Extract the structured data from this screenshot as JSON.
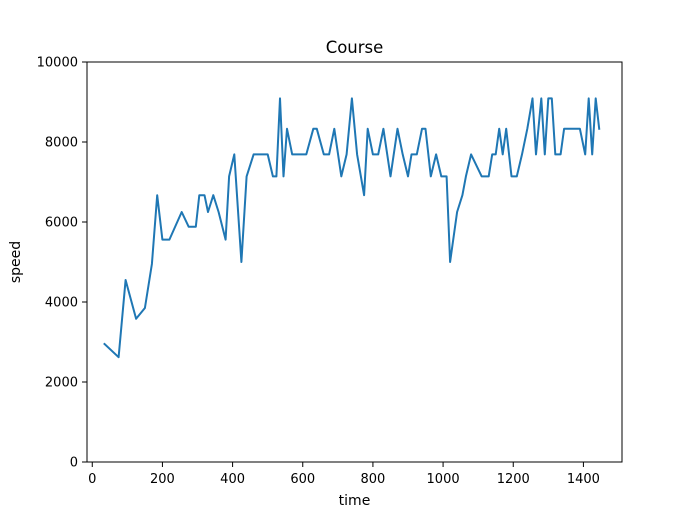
{
  "chart_data": {
    "type": "line",
    "title": "Course",
    "xlabel": "time",
    "ylabel": "speed",
    "xlim": [
      -15,
      1510
    ],
    "ylim": [
      0,
      10000
    ],
    "xticks": [
      0,
      200,
      400,
      600,
      800,
      1000,
      1200,
      1400
    ],
    "yticks": [
      0,
      2000,
      4000,
      6000,
      8000,
      10000
    ],
    "grid": false,
    "legend": "none",
    "series": [
      {
        "color": "#1f77b4",
        "x": [
          35,
          75,
          95,
          125,
          150,
          170,
          185,
          200,
          220,
          255,
          275,
          295,
          305,
          320,
          330,
          345,
          360,
          380,
          390,
          405,
          425,
          440,
          460,
          480,
          500,
          515,
          525,
          535,
          545,
          555,
          570,
          600,
          610,
          630,
          640,
          660,
          675,
          690,
          710,
          725,
          740,
          755,
          775,
          785,
          800,
          815,
          830,
          850,
          870,
          885,
          900,
          910,
          925,
          940,
          950,
          965,
          980,
          995,
          1010,
          1020,
          1040,
          1055,
          1065,
          1080,
          1110,
          1130,
          1140,
          1150,
          1160,
          1170,
          1180,
          1195,
          1210,
          1225,
          1240,
          1255,
          1265,
          1280,
          1290,
          1300,
          1310,
          1320,
          1335,
          1345,
          1360,
          1375,
          1390,
          1405,
          1415,
          1425,
          1435,
          1445
        ],
        "y": [
          2950,
          2620,
          4550,
          3580,
          3850,
          4950,
          6670,
          5560,
          5560,
          6250,
          5880,
          5880,
          6670,
          6670,
          6250,
          6670,
          6250,
          5560,
          7140,
          7690,
          5000,
          7140,
          7690,
          7690,
          7690,
          7140,
          7140,
          9090,
          7140,
          8330,
          7690,
          7690,
          7690,
          8330,
          8330,
          7690,
          7690,
          8330,
          7140,
          7690,
          9090,
          7690,
          6670,
          8330,
          7690,
          7690,
          8330,
          7140,
          8330,
          7690,
          7140,
          7690,
          7690,
          8330,
          8330,
          7140,
          7690,
          7140,
          7140,
          5000,
          6250,
          6670,
          7140,
          7690,
          7140,
          7140,
          7690,
          7690,
          8330,
          7690,
          8330,
          7140,
          7140,
          7690,
          8330,
          9090,
          7690,
          9090,
          7690,
          9090,
          9090,
          7690,
          7690,
          8330,
          8330,
          8330,
          8330,
          7690,
          9090,
          7690,
          9090,
          8330
        ]
      }
    ]
  }
}
